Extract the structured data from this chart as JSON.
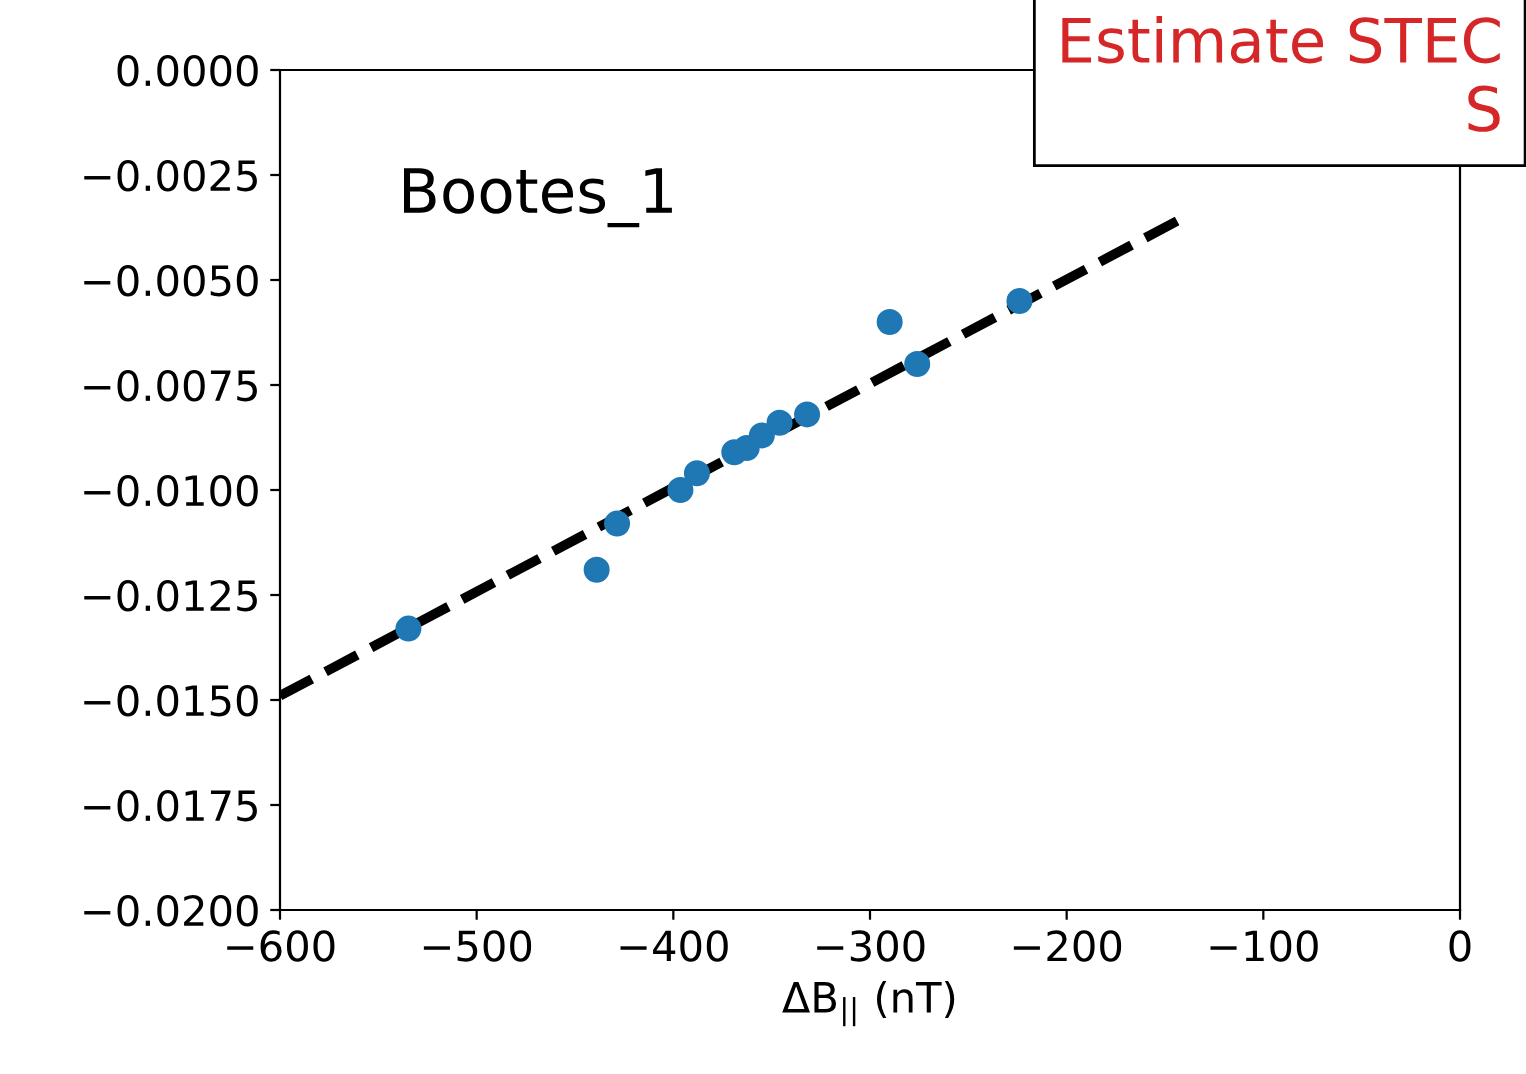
{
  "chart_data": {
    "type": "scatter",
    "xlabel": "ΔB$_{||}$ (nT)",
    "annotations": [
      "Bootes_1",
      "Estimate STEC\nS"
    ],
    "series": [
      {
        "color": "#1f77b4",
        "x": [
          -534.7,
          -439,
          -428.6,
          -396.4,
          -388,
          -369,
          -362.7,
          -355,
          -346,
          -332,
          -290,
          -276,
          -224
        ],
        "values": [
          -0.0133,
          -0.0119,
          -0.0108,
          -0.01,
          -0.0096,
          -0.0091,
          -0.009,
          -0.0087,
          -0.0084,
          -0.0082,
          -0.006,
          -0.007,
          -0.0055
        ]
      },
      {
        "type": "line",
        "color": "#000000",
        "line_style": "dashed",
        "x": [
          -600,
          -140
        ],
        "values": [
          -0.0149,
          -0.0035
        ]
      }
    ],
    "xlim": [
      -600,
      0
    ],
    "xticks": [
      -600,
      -500,
      -400,
      -300,
      -200,
      -100,
      0
    ],
    "ylim": [
      -0.02,
      0
    ],
    "yticks": [
      {
        "value": -0.02,
        "label": "−0.0200"
      },
      {
        "value": -0.0175,
        "label": "−0.0175"
      },
      {
        "value": -0.015,
        "label": "−0.0150"
      },
      {
        "value": -0.0125,
        "label": "−0.0125"
      },
      {
        "value": -0.01,
        "label": "−0.0100"
      },
      {
        "value": -0.0075,
        "label": "−0.0075"
      },
      {
        "value": -0.005,
        "label": "−0.0050"
      },
      {
        "value": -0.0025,
        "label": "−0.0025"
      },
      {
        "value": 0,
        "label": "0.0000"
      }
    ],
    "grid": false,
    "legend": false
  }
}
